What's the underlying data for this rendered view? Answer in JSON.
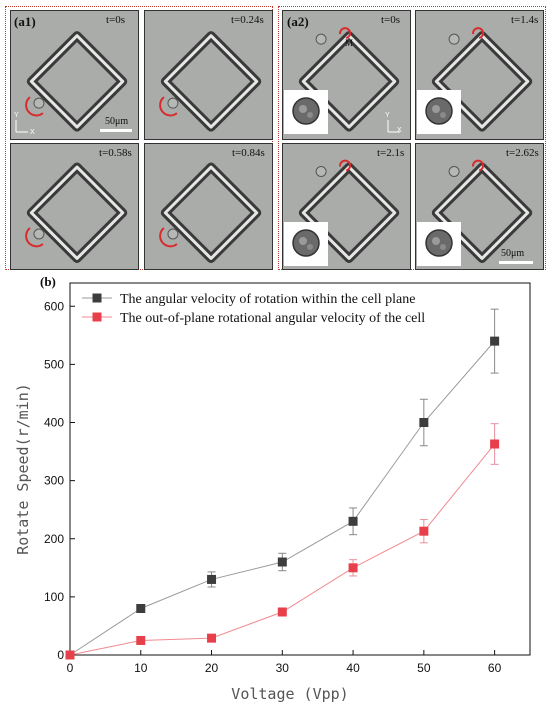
{
  "panels": {
    "a1": {
      "label": "(a1)",
      "frames": [
        {
          "time": "t=0s"
        },
        {
          "time": "t=0.24s"
        },
        {
          "time": "t=0.58s"
        },
        {
          "time": "t=0.84s"
        }
      ],
      "scale": "50μm",
      "axis_y": "Y",
      "axis_x": "X"
    },
    "a2": {
      "label": "(a2)",
      "frames": [
        {
          "time": "t=0s"
        },
        {
          "time": "t=1.4s"
        },
        {
          "time": "t=2.1s"
        },
        {
          "time": "t=2.62s"
        }
      ],
      "marker": "M",
      "scale": "50μm",
      "axis_y": "Y",
      "axis_x": "X"
    }
  },
  "chart_data": {
    "type": "line",
    "panel_label": "(b)",
    "xlabel": "Voltage (Vpp)",
    "ylabel": "Rotate Speed(r/min)",
    "xlim": [
      0,
      65
    ],
    "ylim": [
      0,
      640
    ],
    "xticks": [
      0,
      10,
      20,
      30,
      40,
      50,
      60
    ],
    "yticks": [
      0,
      100,
      200,
      300,
      400,
      500,
      600
    ],
    "legend_position": "top-left",
    "series": [
      {
        "name": "The angular velocity of rotation within the cell plane",
        "color": "#3d3d3d",
        "x": [
          0,
          10,
          20,
          30,
          40,
          50,
          60
        ],
        "y": [
          0,
          80,
          130,
          160,
          230,
          400,
          540
        ],
        "err": [
          0,
          5,
          13,
          15,
          23,
          40,
          55
        ]
      },
      {
        "name": "The out-of-plane rotational angular velocity of the cell",
        "color": "#e8404b",
        "x": [
          0,
          10,
          20,
          30,
          40,
          50,
          60
        ],
        "y": [
          0,
          25,
          29,
          74,
          150,
          213,
          363
        ],
        "err": [
          0,
          3,
          3,
          4,
          14,
          20,
          35
        ]
      }
    ]
  }
}
